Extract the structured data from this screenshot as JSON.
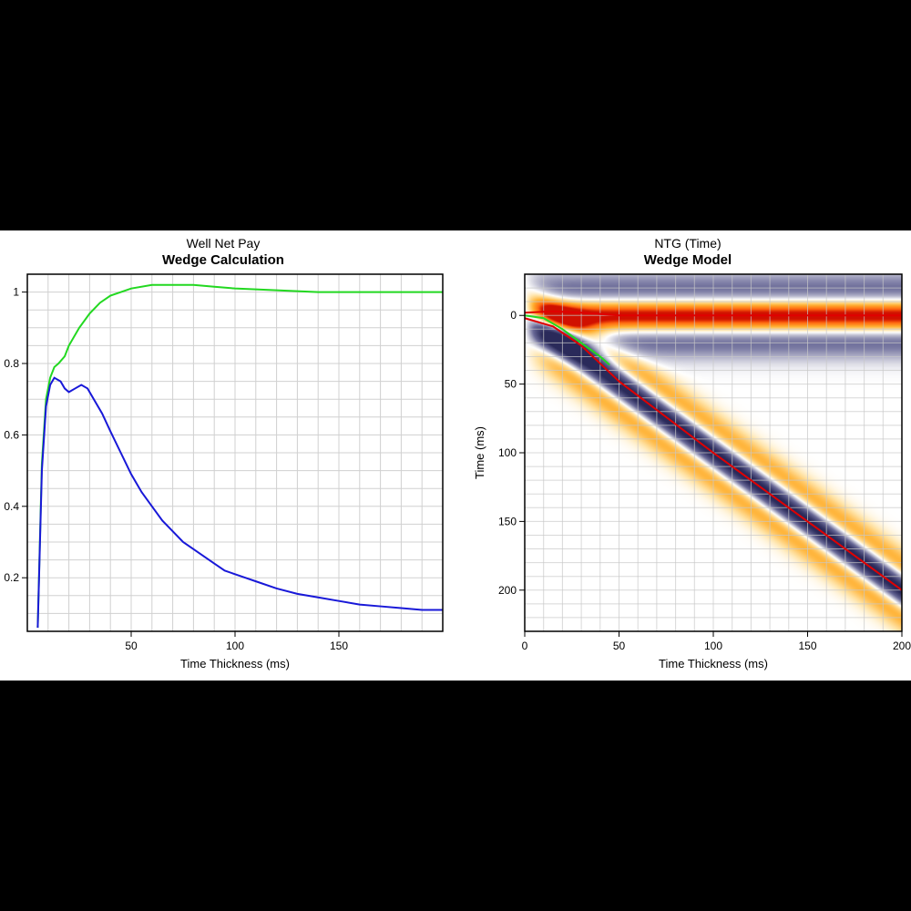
{
  "left_chart": {
    "type": "line",
    "supertitle": "Well Net Pay",
    "title": "Wedge Calculation",
    "xlabel": "Time Thickness (ms)",
    "xlim": [
      0,
      200
    ],
    "xticks": [
      50,
      100,
      150
    ],
    "ylim": [
      0.05,
      1.05
    ],
    "yticks": [
      0.2,
      0.4,
      0.6,
      0.8,
      1
    ],
    "ytick_labels": [
      "0.2",
      "0.4",
      "0.6",
      "0.8",
      "1"
    ],
    "grid_color": "#d0d0d0",
    "grid_minor_step_x": 10,
    "grid_minor_step_y": 0.05,
    "background_color": "#ffffff",
    "border_color": "#000000",
    "title_fontsize": 15,
    "supertitle_fontsize": 14,
    "label_fontsize": 13,
    "tick_fontsize": 12,
    "line_width": 2,
    "series": [
      {
        "name": "green-series",
        "color": "#22d820",
        "data": [
          [
            5,
            0.06
          ],
          [
            7,
            0.52
          ],
          [
            9,
            0.7
          ],
          [
            11,
            0.76
          ],
          [
            13,
            0.79
          ],
          [
            15,
            0.8
          ],
          [
            18,
            0.82
          ],
          [
            20,
            0.85
          ],
          [
            25,
            0.9
          ],
          [
            30,
            0.94
          ],
          [
            35,
            0.97
          ],
          [
            40,
            0.99
          ],
          [
            50,
            1.01
          ],
          [
            60,
            1.02
          ],
          [
            70,
            1.02
          ],
          [
            80,
            1.02
          ],
          [
            90,
            1.015
          ],
          [
            100,
            1.01
          ],
          [
            120,
            1.005
          ],
          [
            140,
            1.0
          ],
          [
            160,
            1.0
          ],
          [
            180,
            1.0
          ],
          [
            200,
            1.0
          ]
        ]
      },
      {
        "name": "blue-series",
        "color": "#1818d8",
        "data": [
          [
            5,
            0.06
          ],
          [
            7,
            0.5
          ],
          [
            9,
            0.68
          ],
          [
            11,
            0.74
          ],
          [
            13,
            0.76
          ],
          [
            16,
            0.75
          ],
          [
            18,
            0.73
          ],
          [
            20,
            0.72
          ],
          [
            23,
            0.73
          ],
          [
            26,
            0.74
          ],
          [
            29,
            0.73
          ],
          [
            32,
            0.7
          ],
          [
            36,
            0.66
          ],
          [
            40,
            0.61
          ],
          [
            45,
            0.55
          ],
          [
            50,
            0.49
          ],
          [
            55,
            0.44
          ],
          [
            60,
            0.4
          ],
          [
            65,
            0.36
          ],
          [
            70,
            0.33
          ],
          [
            75,
            0.3
          ],
          [
            80,
            0.28
          ],
          [
            85,
            0.26
          ],
          [
            90,
            0.24
          ],
          [
            95,
            0.22
          ],
          [
            100,
            0.21
          ],
          [
            110,
            0.19
          ],
          [
            120,
            0.17
          ],
          [
            130,
            0.155
          ],
          [
            140,
            0.145
          ],
          [
            150,
            0.135
          ],
          [
            160,
            0.125
          ],
          [
            170,
            0.12
          ],
          [
            180,
            0.115
          ],
          [
            190,
            0.11
          ],
          [
            200,
            0.11
          ]
        ]
      }
    ]
  },
  "right_chart": {
    "type": "heatmap",
    "supertitle": "NTG (Time)",
    "title": "Wedge Model",
    "xlabel": "Time Thickness (ms)",
    "ylabel": "Time (ms)",
    "xlim": [
      0,
      200
    ],
    "xticks": [
      0,
      50,
      100,
      150,
      200
    ],
    "ylim": [
      -30,
      230
    ],
    "yticks": [
      0,
      50,
      100,
      150,
      200
    ],
    "y_inverted": true,
    "grid_color": "#c8c8c8",
    "grid_minor_step_x": 10,
    "grid_minor_step_y": 10,
    "background_color": "#ffffff",
    "border_color": "#000000",
    "title_fontsize": 15,
    "supertitle_fontsize": 14,
    "label_fontsize": 13,
    "tick_fontsize": 12,
    "colormap_stops": [
      {
        "v": -1.0,
        "c": "#2a2a5a"
      },
      {
        "v": -0.5,
        "c": "#6a6a98"
      },
      {
        "v": -0.2,
        "c": "#c0c0d2"
      },
      {
        "v": 0.0,
        "c": "#ffffff"
      },
      {
        "v": 0.2,
        "c": "#ffe4a8"
      },
      {
        "v": 0.5,
        "c": "#ffb030"
      },
      {
        "v": 0.8,
        "c": "#ff6a10"
      },
      {
        "v": 1.0,
        "c": "#d01000"
      }
    ],
    "wavelet_width_ms": 30,
    "overlay_lines": [
      {
        "name": "top-pick",
        "color": "#e00000",
        "width": 2,
        "pts": [
          [
            0,
            -2
          ],
          [
            15,
            -3
          ],
          [
            30,
            -2
          ],
          [
            50,
            0
          ],
          [
            100,
            0
          ],
          [
            150,
            0
          ],
          [
            200,
            0
          ]
        ]
      },
      {
        "name": "base-pick",
        "color": "#e00000",
        "width": 2,
        "pts": [
          [
            0,
            2
          ],
          [
            15,
            8
          ],
          [
            30,
            22
          ],
          [
            50,
            48
          ],
          [
            100,
            100
          ],
          [
            150,
            150
          ],
          [
            200,
            200
          ]
        ]
      },
      {
        "name": "green-pick",
        "color": "#22d820",
        "width": 2,
        "pts": [
          [
            0,
            0
          ],
          [
            10,
            2
          ],
          [
            20,
            10
          ],
          [
            30,
            20
          ],
          [
            40,
            30
          ],
          [
            45,
            36
          ]
        ]
      }
    ]
  }
}
